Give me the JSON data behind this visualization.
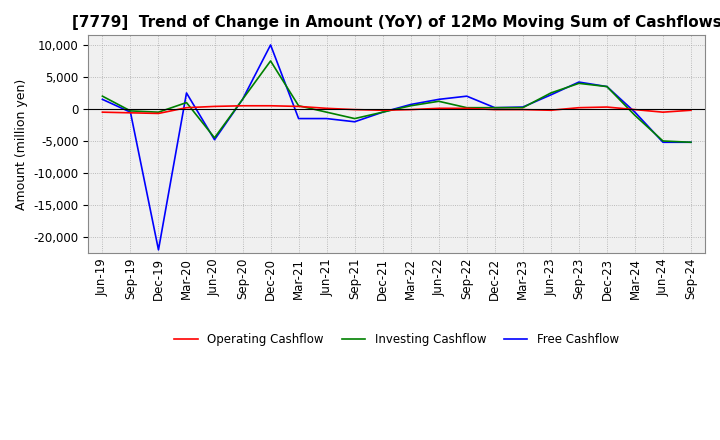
{
  "title": "[7779]  Trend of Change in Amount (YoY) of 12Mo Moving Sum of Cashflows",
  "ylabel": "Amount (million yen)",
  "title_fontsize": 11,
  "label_fontsize": 9,
  "tick_fontsize": 8.5,
  "background_color": "#ffffff",
  "plot_bg_color": "#f0f0f0",
  "grid_color": "#aaaaaa",
  "x_labels": [
    "Jun-19",
    "Sep-19",
    "Dec-19",
    "Mar-20",
    "Jun-20",
    "Sep-20",
    "Dec-20",
    "Mar-21",
    "Jun-21",
    "Sep-21",
    "Dec-21",
    "Mar-22",
    "Jun-22",
    "Sep-22",
    "Dec-22",
    "Mar-23",
    "Jun-23",
    "Sep-23",
    "Dec-23",
    "Mar-24",
    "Jun-24",
    "Sep-24"
  ],
  "operating_cashflow": [
    -500,
    -600,
    -700,
    200,
    400,
    500,
    500,
    400,
    100,
    -100,
    -200,
    -100,
    100,
    100,
    -100,
    -100,
    -200,
    200,
    300,
    -100,
    -500,
    -200
  ],
  "investing_cashflow": [
    2000,
    -300,
    -500,
    1000,
    -4500,
    1500,
    7500,
    500,
    -500,
    -1500,
    -500,
    500,
    1200,
    200,
    200,
    200,
    2500,
    4000,
    3500,
    -1000,
    -5000,
    -5200
  ],
  "free_cashflow": [
    1500,
    -500,
    -22000,
    2500,
    -4800,
    1500,
    10000,
    -1500,
    -1500,
    -2000,
    -500,
    700,
    1500,
    2000,
    200,
    300,
    2200,
    4200,
    3500,
    -500,
    -5200,
    -5200
  ],
  "ylim": [
    -22500,
    11500
  ],
  "yticks": [
    -20000,
    -15000,
    -10000,
    -5000,
    0,
    5000,
    10000
  ],
  "operating_color": "#ff0000",
  "investing_color": "#008000",
  "free_color": "#0000ff",
  "legend_labels": [
    "Operating Cashflow",
    "Investing Cashflow",
    "Free Cashflow"
  ]
}
